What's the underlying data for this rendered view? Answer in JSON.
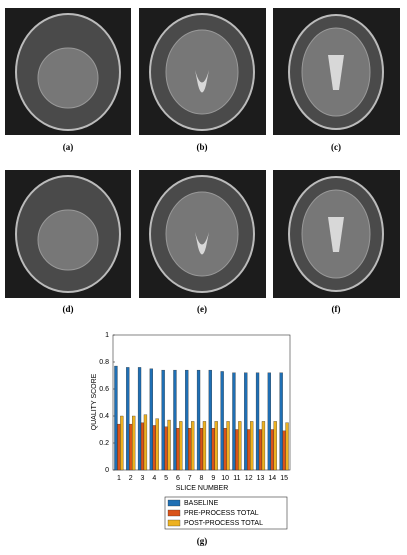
{
  "panel_labels": [
    "(a)",
    "(b)",
    "(c)",
    "(d)",
    "(e)",
    "(f)",
    "(g)"
  ],
  "chart_data": {
    "type": "bar",
    "y_label": "QUALITY SCORE",
    "x_label": "SLICE NUMBER",
    "categories": [
      "1",
      "2",
      "3",
      "4",
      "5",
      "6",
      "7",
      "8",
      "9",
      "10",
      "11",
      "12",
      "13",
      "14",
      "15"
    ],
    "series": [
      {
        "name": "BASELINE",
        "color": "#1f6fb4",
        "values": [
          0.77,
          0.76,
          0.76,
          0.75,
          0.74,
          0.74,
          0.74,
          0.74,
          0.74,
          0.73,
          0.72,
          0.72,
          0.72,
          0.72,
          0.72
        ]
      },
      {
        "name": "PRE-PROCESS TOTAL",
        "color": "#d95319",
        "values": [
          0.34,
          0.34,
          0.35,
          0.33,
          0.32,
          0.31,
          0.31,
          0.31,
          0.31,
          0.31,
          0.3,
          0.3,
          0.3,
          0.3,
          0.29
        ]
      },
      {
        "name": "POST-PROCESS TOTAL",
        "color": "#edb120",
        "values": [
          0.4,
          0.4,
          0.41,
          0.38,
          0.37,
          0.36,
          0.36,
          0.36,
          0.36,
          0.36,
          0.36,
          0.36,
          0.36,
          0.36,
          0.35
        ]
      }
    ],
    "ylim": [
      0,
      1
    ],
    "yticks": [
      0,
      0.2,
      0.4,
      0.6,
      0.8,
      1
    ],
    "grid": false,
    "legend": "bottom"
  }
}
